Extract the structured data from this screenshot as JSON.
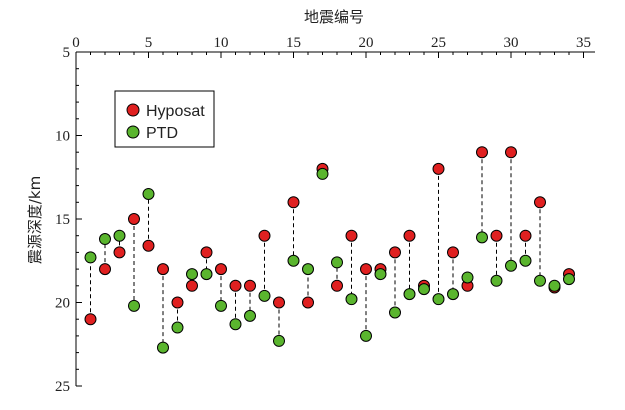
{
  "chart_data": {
    "type": "scatter",
    "xlabel": "地震编号",
    "ylabel": "震源深度/km",
    "xlim": [
      0,
      36
    ],
    "ylim": [
      5,
      25
    ],
    "y_inverted": true,
    "x_axis_position": "top",
    "xticks": [
      0,
      5,
      10,
      15,
      20,
      25,
      30,
      35
    ],
    "yticks": [
      5,
      10,
      15,
      20,
      25
    ],
    "grid": false,
    "legend_position": "top-left",
    "connectors": "dashed vertical line between the two estimates of each event",
    "x": [
      1,
      2,
      3,
      4,
      5,
      6,
      7,
      8,
      9,
      10,
      11,
      12,
      13,
      14,
      15,
      16,
      17,
      18,
      19,
      20,
      21,
      22,
      23,
      24,
      25,
      26,
      27,
      28,
      29,
      30,
      31,
      32,
      33,
      34
    ],
    "series": [
      {
        "name": "Hyposat",
        "color": "#e02020",
        "values": [
          21.0,
          18.0,
          17.0,
          15.0,
          16.6,
          18.0,
          20.0,
          19.0,
          17.0,
          18.0,
          19.0,
          19.0,
          16.0,
          20.0,
          14.0,
          20.0,
          12.0,
          19.0,
          16.0,
          18.0,
          18.0,
          17.0,
          16.0,
          19.0,
          12.0,
          17.0,
          19.0,
          11.0,
          16.0,
          11.0,
          16.0,
          14.0,
          19.1,
          18.3
        ]
      },
      {
        "name": "PTD",
        "color": "#5ab52e",
        "values": [
          17.3,
          16.2,
          16.0,
          20.2,
          13.5,
          22.7,
          21.5,
          18.3,
          18.3,
          20.2,
          21.3,
          20.8,
          19.6,
          22.3,
          17.5,
          18.0,
          12.3,
          17.6,
          19.8,
          22.0,
          18.3,
          20.6,
          19.5,
          19.2,
          19.8,
          19.5,
          18.5,
          16.1,
          18.7,
          17.8,
          17.5,
          18.7,
          19.0,
          18.6
        ]
      }
    ]
  }
}
